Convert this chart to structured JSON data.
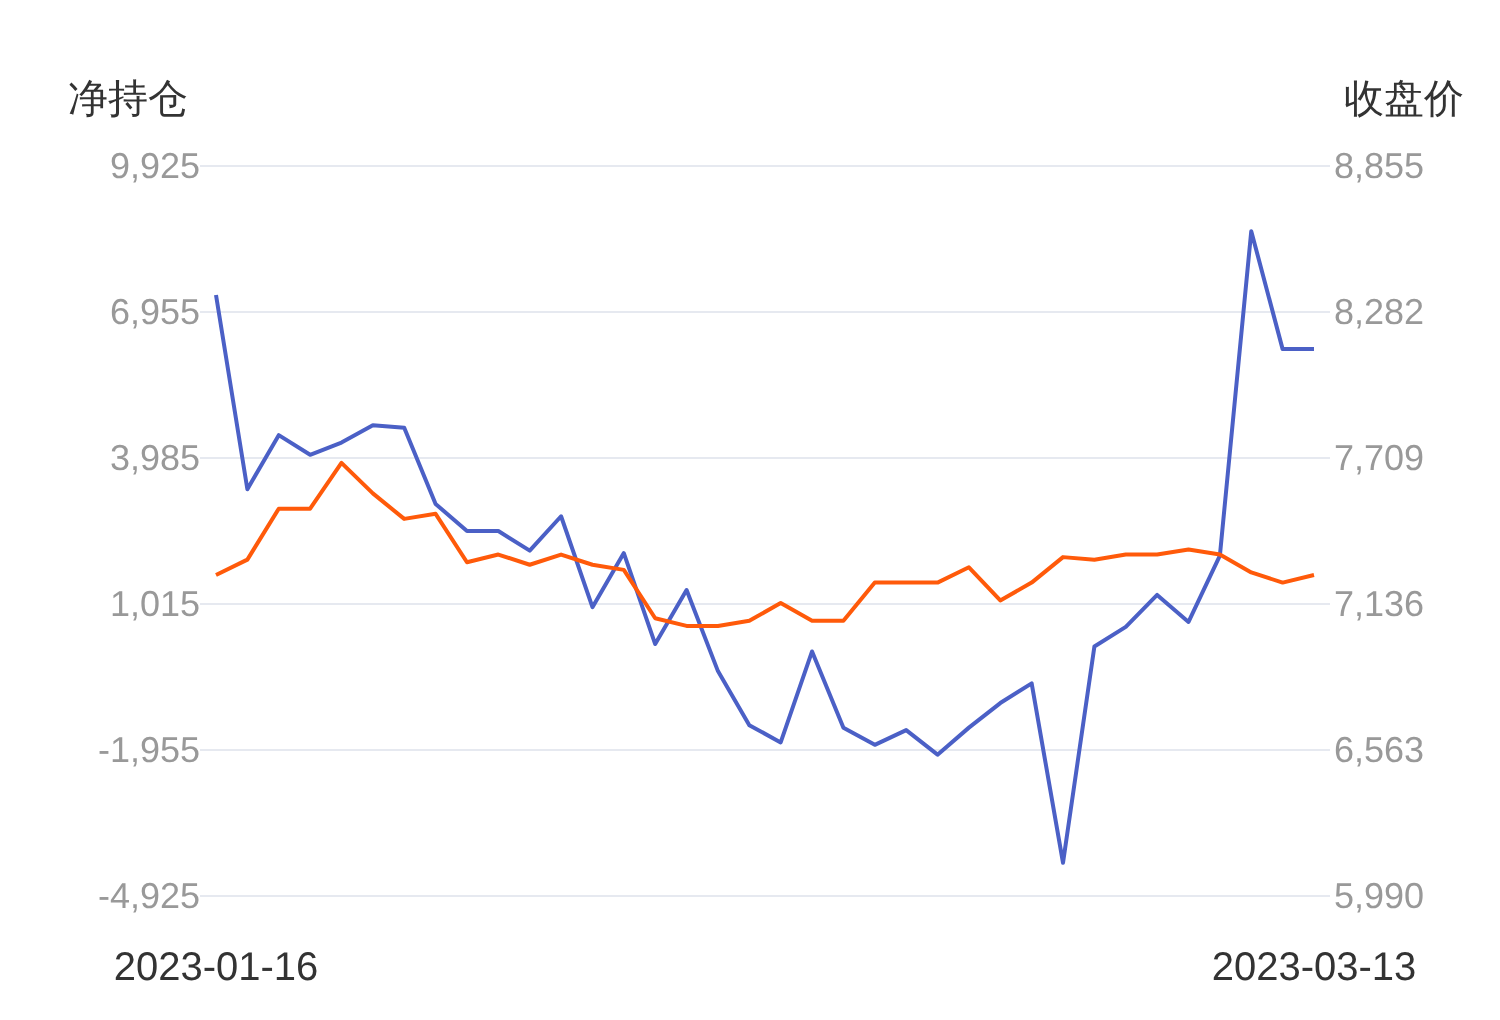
{
  "chart_data": {
    "type": "line",
    "ylabel": "净持仓",
    "y2label": "收盘价",
    "categories": [
      "2023-01-16",
      null,
      null,
      null,
      null,
      null,
      null,
      null,
      null,
      null,
      null,
      null,
      null,
      null,
      null,
      null,
      null,
      null,
      null,
      null,
      null,
      null,
      null,
      null,
      null,
      null,
      null,
      null,
      null,
      null,
      null,
      null,
      null,
      null,
      null,
      "2023-03-13"
    ],
    "series": [
      {
        "color": "#4b60c6",
        "values": [
          7300,
          3350,
          4450,
          4050,
          4300,
          4650,
          4600,
          3050,
          2500,
          2500,
          2100,
          2800,
          950,
          2050,
          200,
          1300,
          -350,
          -1450,
          -1800,
          50,
          -1500,
          -1850,
          -1550,
          -2050,
          -1500,
          -1000,
          -600,
          -4250,
          150,
          550,
          1200,
          650,
          2000,
          8600,
          6200,
          6200
        ]
      },
      {
        "color": "#ff5a0a",
        "axis": "y2",
        "values": [
          7250,
          7310,
          7510,
          7510,
          7690,
          7570,
          7470,
          7490,
          7300,
          7330,
          7290,
          7330,
          7290,
          7270,
          7080,
          7050,
          7050,
          7070,
          7140,
          7070,
          7070,
          7220,
          7220,
          7220,
          7280,
          7150,
          7220,
          7320,
          7310,
          7330,
          7330,
          7350,
          7330,
          7260,
          7220,
          7250
        ]
      }
    ],
    "ylim": [
      -4925,
      9925
    ],
    "yticks": [
      {
        "value": -4925,
        "label": "-4,925"
      },
      {
        "value": -1955,
        "label": "-1,955"
      },
      {
        "value": 1015,
        "label": "1,015"
      },
      {
        "value": 3985,
        "label": "3,985"
      },
      {
        "value": 6955,
        "label": "6,955"
      },
      {
        "value": 9925,
        "label": "9,925"
      }
    ],
    "y2lim": [
      5990,
      8855
    ],
    "y2ticks": [
      {
        "value": 5990,
        "label": "5,990"
      },
      {
        "value": 6563,
        "label": "6,563"
      },
      {
        "value": 7136,
        "label": "7,136"
      },
      {
        "value": 7709,
        "label": "7,709"
      },
      {
        "value": 8282,
        "label": "8,282"
      },
      {
        "value": 8855,
        "label": "8,855"
      }
    ],
    "grid": "y"
  }
}
